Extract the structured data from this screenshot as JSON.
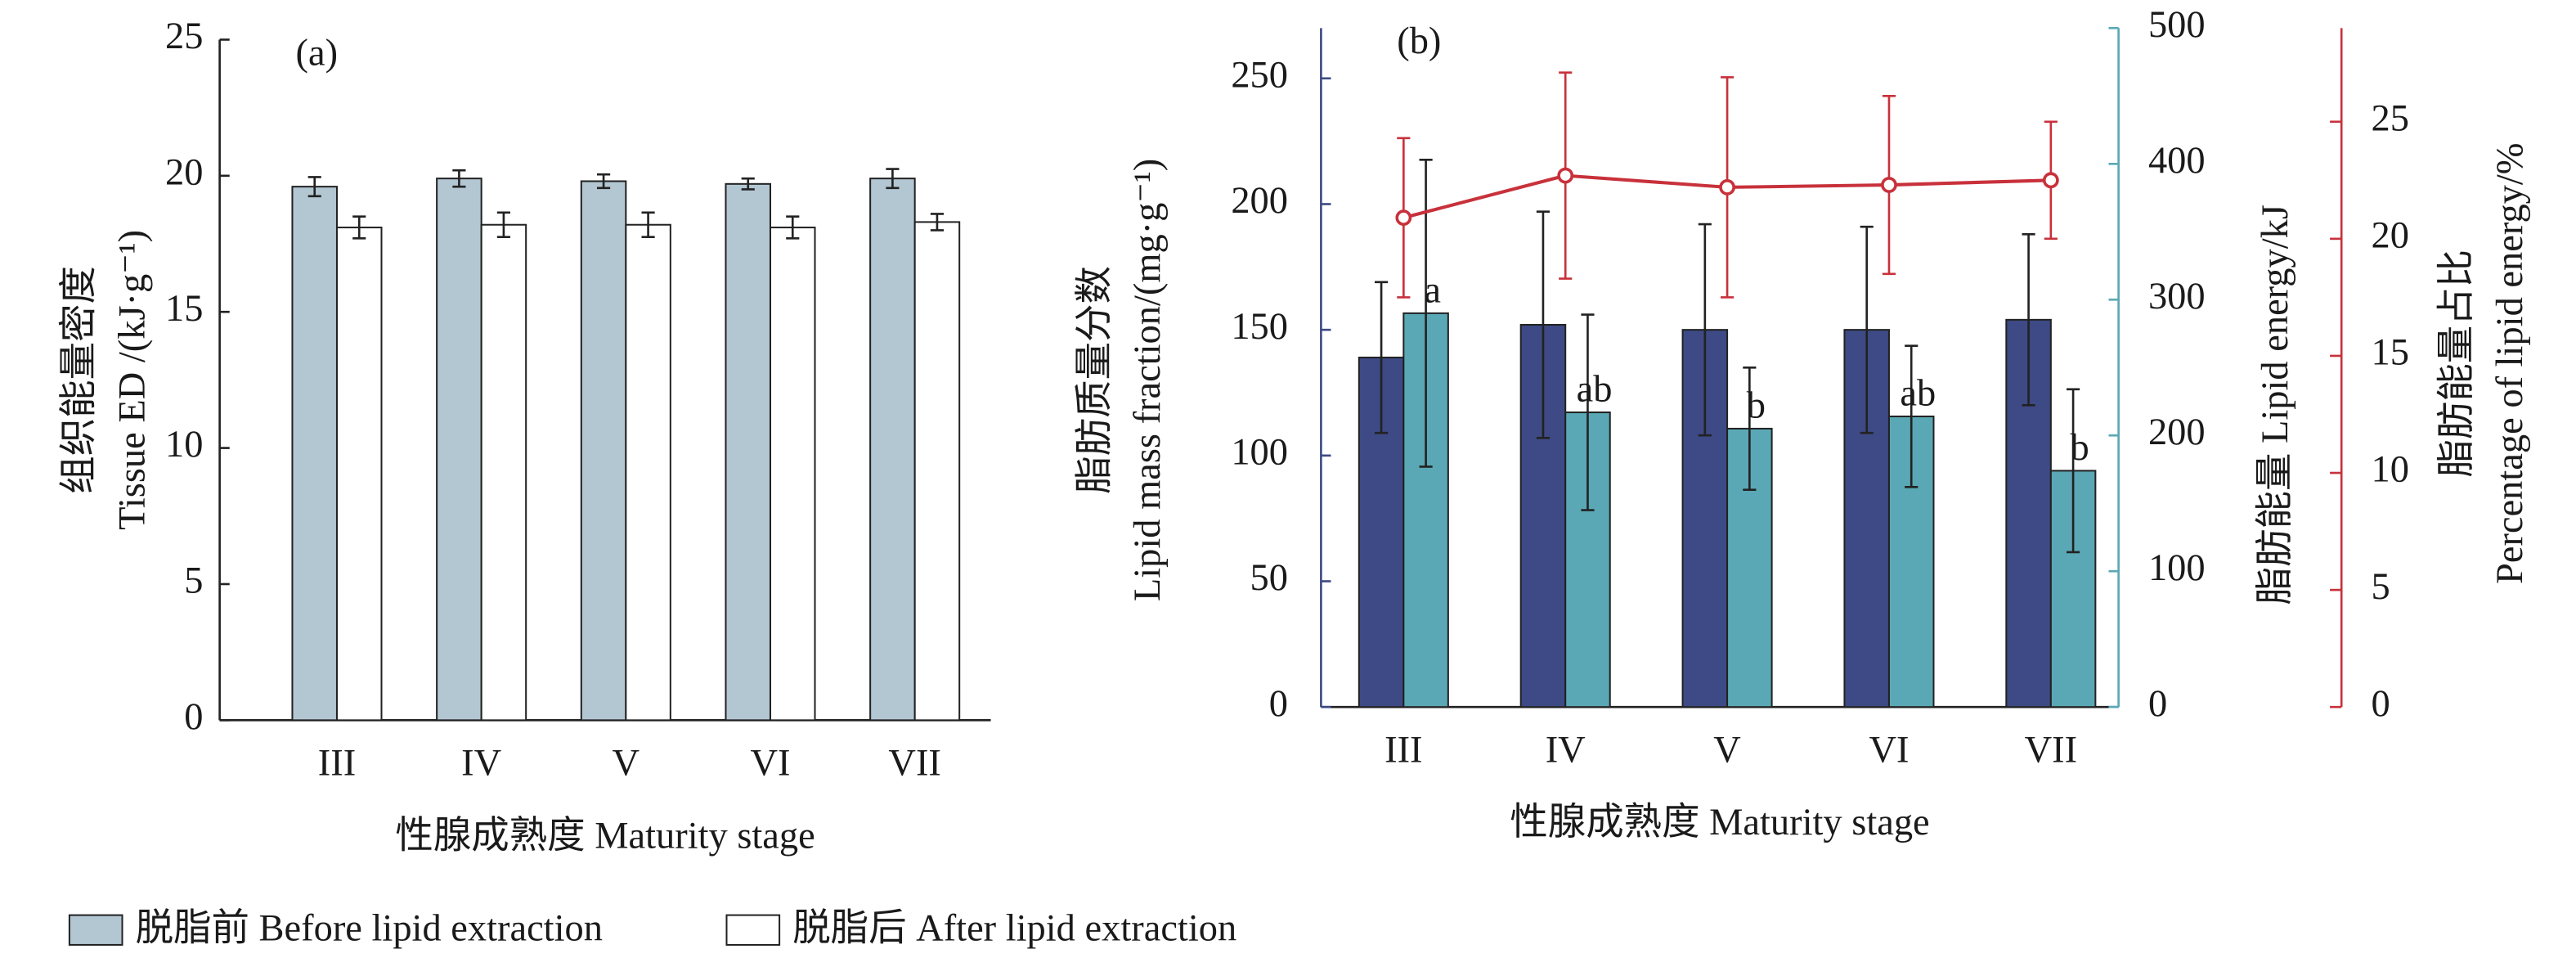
{
  "chart_data": [
    {
      "type": "bar",
      "panel_label": "(a)",
      "y_label": [
        "组织能量密度",
        "Tissue ED /(kJ·g⁻¹)"
      ],
      "x_label": "性腺成熟度 Maturity stage",
      "categories": [
        "III",
        "IV",
        "V",
        "VI",
        "VII"
      ],
      "ylim": [
        0,
        25
      ],
      "yticks": [
        0,
        5,
        10,
        15,
        20,
        25
      ],
      "legend": "bottom",
      "series": [
        {
          "name": "脱脂前 Before lipid extraction",
          "color": "#b3c7d3",
          "values": [
            19.6,
            19.9,
            19.8,
            19.7,
            19.9
          ],
          "errors": [
            0.35,
            0.3,
            0.25,
            0.2,
            0.35
          ]
        },
        {
          "name": "脱脂后  After lipid extraction",
          "color": "#ffffff",
          "values": [
            18.1,
            18.2,
            18.2,
            18.1,
            18.3
          ],
          "errors": [
            0.4,
            0.45,
            0.45,
            0.4,
            0.3
          ]
        }
      ]
    },
    {
      "type": "bar-line",
      "panel_label": "(b)",
      "y_label": [
        "脂肪质量分数",
        "Lipid mass fraction/(mg·g⁻¹)"
      ],
      "y2_label": "脂肪能量  Lipid energy/kJ",
      "y3_label": [
        "脂肪能量占比",
        "Percentage of lipid energy/%"
      ],
      "x_label": "性腺成熟度 Maturity stage",
      "categories": [
        "III",
        "IV",
        "V",
        "VI",
        "VII"
      ],
      "ylim": [
        0,
        270
      ],
      "yticks": [
        0,
        50,
        100,
        150,
        200,
        250
      ],
      "y2lim": [
        0,
        500
      ],
      "y2ticks": [
        0,
        100,
        200,
        300,
        400,
        500
      ],
      "y3lim": [
        0,
        29
      ],
      "y3ticks": [
        0,
        5,
        10,
        15,
        20,
        25
      ],
      "series": [
        {
          "color": "#3d4a85",
          "values": [
            139,
            152,
            150,
            150,
            154
          ],
          "errors": [
            30,
            45,
            42,
            41,
            34
          ]
        },
        {
          "axis": "y2",
          "color": "#5aa8b5",
          "values": [
            290,
            217,
            205,
            214,
            174
          ],
          "errors": [
            113,
            72,
            45,
            52,
            60
          ],
          "letters": [
            "a",
            "ab",
            "b",
            "ab",
            "b"
          ]
        },
        {
          "type": "line",
          "axis": "y3",
          "color": "#c8313b",
          "values": [
            20.9,
            22.7,
            22.2,
            22.3,
            22.5
          ],
          "errors": [
            3.4,
            4.4,
            4.7,
            3.8,
            2.5
          ]
        }
      ]
    }
  ]
}
